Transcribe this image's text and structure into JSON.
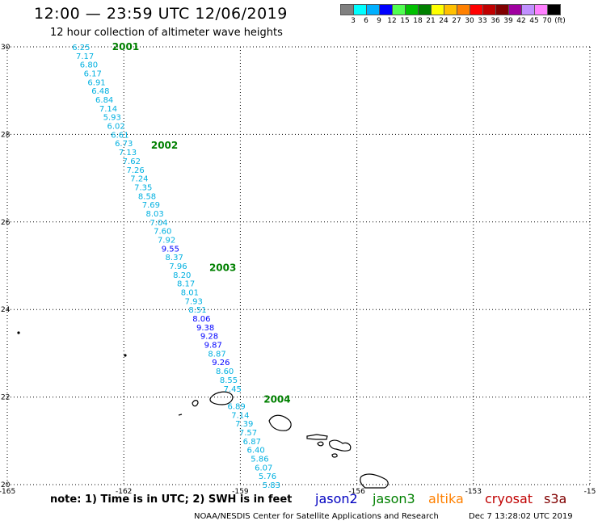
{
  "header": {
    "title": "12:00 — 23:59 UTC 12/06/2019",
    "subtitle": "12 hour collection of altimeter wave heights"
  },
  "scale": {
    "colors": [
      "#808080",
      "#00ffff",
      "#00b0ff",
      "#0000ff",
      "#50ff50",
      "#00c000",
      "#008000",
      "#ffff00",
      "#ffc000",
      "#ff8000",
      "#ff0000",
      "#c00000",
      "#800000",
      "#a000a0",
      "#c090ff",
      "#ff80ff",
      "#000000"
    ],
    "labels": [
      "3",
      "6",
      "9",
      "12",
      "15",
      "18",
      "21",
      "24",
      "27",
      "30",
      "33",
      "36",
      "39",
      "42",
      "45",
      "70",
      "(ft)"
    ]
  },
  "map": {
    "lon_ticks": [
      "-165",
      "-162",
      "-159",
      "-156",
      "-153",
      "-15"
    ],
    "lat_ticks": [
      "30",
      "28",
      "26",
      "24",
      "22",
      "20"
    ],
    "track": [
      {
        "lat": 30.0,
        "lon": -163.1,
        "v": "6.25"
      },
      {
        "lat": 29.8,
        "lon": -163.0,
        "v": "7.17"
      },
      {
        "lat": 29.6,
        "lon": -162.9,
        "v": "6.80"
      },
      {
        "lat": 29.4,
        "lon": -162.8,
        "v": "6.17"
      },
      {
        "lat": 29.2,
        "lon": -162.7,
        "v": "6.91"
      },
      {
        "lat": 29.0,
        "lon": -162.6,
        "v": "6.48"
      },
      {
        "lat": 28.8,
        "lon": -162.5,
        "v": "6.84"
      },
      {
        "lat": 28.6,
        "lon": -162.4,
        "v": "7.14"
      },
      {
        "lat": 28.4,
        "lon": -162.3,
        "v": "5.93"
      },
      {
        "lat": 28.2,
        "lon": -162.2,
        "v": "6.02"
      },
      {
        "lat": 28.0,
        "lon": -162.1,
        "v": "6.61"
      },
      {
        "lat": 27.8,
        "lon": -162.0,
        "v": "6.73"
      },
      {
        "lat": 27.6,
        "lon": -161.9,
        "v": "7.13"
      },
      {
        "lat": 27.4,
        "lon": -161.8,
        "v": "7.62"
      },
      {
        "lat": 27.2,
        "lon": -161.7,
        "v": "7.26"
      },
      {
        "lat": 27.0,
        "lon": -161.6,
        "v": "7.24"
      },
      {
        "lat": 26.8,
        "lon": -161.5,
        "v": "7.35"
      },
      {
        "lat": 26.6,
        "lon": -161.4,
        "v": "8.58"
      },
      {
        "lat": 26.4,
        "lon": -161.3,
        "v": "7.69"
      },
      {
        "lat": 26.2,
        "lon": -161.2,
        "v": "8.03"
      },
      {
        "lat": 26.0,
        "lon": -161.1,
        "v": "7.04"
      },
      {
        "lat": 25.8,
        "lon": -161.0,
        "v": "7.60"
      },
      {
        "lat": 25.6,
        "lon": -160.9,
        "v": "7.92"
      },
      {
        "lat": 25.4,
        "lon": -160.8,
        "v": "9.55",
        "c": "#0000ff"
      },
      {
        "lat": 25.2,
        "lon": -160.7,
        "v": "8.37"
      },
      {
        "lat": 25.0,
        "lon": -160.6,
        "v": "7.96"
      },
      {
        "lat": 24.8,
        "lon": -160.5,
        "v": "8.20"
      },
      {
        "lat": 24.6,
        "lon": -160.4,
        "v": "8.17"
      },
      {
        "lat": 24.4,
        "lon": -160.3,
        "v": "8.01"
      },
      {
        "lat": 24.2,
        "lon": -160.2,
        "v": "7.93"
      },
      {
        "lat": 24.0,
        "lon": -160.1,
        "v": "8.51"
      },
      {
        "lat": 23.8,
        "lon": -160.0,
        "v": "8.06",
        "c": "#0000ff"
      },
      {
        "lat": 23.6,
        "lon": -159.9,
        "v": "9.38",
        "c": "#0000ff"
      },
      {
        "lat": 23.4,
        "lon": -159.8,
        "v": "9.28",
        "c": "#0000ff"
      },
      {
        "lat": 23.2,
        "lon": -159.7,
        "v": "9.87",
        "c": "#0000ff"
      },
      {
        "lat": 23.0,
        "lon": -159.6,
        "v": "8.87"
      },
      {
        "lat": 22.8,
        "lon": -159.5,
        "v": "9.26",
        "c": "#0000ff"
      },
      {
        "lat": 22.6,
        "lon": -159.4,
        "v": "8.60"
      },
      {
        "lat": 22.4,
        "lon": -159.3,
        "v": "8.55"
      },
      {
        "lat": 22.2,
        "lon": -159.2,
        "v": "7.45"
      },
      {
        "lat": 21.8,
        "lon": -159.1,
        "v": "6.89"
      },
      {
        "lat": 21.6,
        "lon": -159.0,
        "v": "7.14"
      },
      {
        "lat": 21.4,
        "lon": -158.9,
        "v": "7.39"
      },
      {
        "lat": 21.2,
        "lon": -158.8,
        "v": "7.57"
      },
      {
        "lat": 21.0,
        "lon": -158.7,
        "v": "6.87"
      },
      {
        "lat": 20.8,
        "lon": -158.6,
        "v": "6.40"
      },
      {
        "lat": 20.6,
        "lon": -158.5,
        "v": "5.86"
      },
      {
        "lat": 20.4,
        "lon": -158.4,
        "v": "6.07"
      },
      {
        "lat": 20.2,
        "lon": -158.3,
        "v": "5.76"
      },
      {
        "lat": 20.0,
        "lon": -158.2,
        "v": "5.83"
      }
    ],
    "time_labels": [
      {
        "lat": 30.0,
        "lon": -162.3,
        "v": "2001"
      },
      {
        "lat": 27.75,
        "lon": -161.3,
        "v": "2002"
      },
      {
        "lat": 24.95,
        "lon": -159.8,
        "v": "2003"
      },
      {
        "lat": 21.95,
        "lon": -158.4,
        "v": "2004"
      }
    ],
    "time_color": "#008000",
    "track_color": "#00b0e0"
  },
  "footer": {
    "note": "note: 1) Time is in UTC; 2) SWH is in feet",
    "satellites": [
      {
        "name": "jason2",
        "color": "#0000c0"
      },
      {
        "name": "jason3",
        "color": "#008000"
      },
      {
        "name": "altika",
        "color": "#ff8000"
      },
      {
        "name": "cryosat",
        "color": "#c00000"
      },
      {
        "name": "s3a",
        "color": "#800000"
      }
    ],
    "credit": "NOAA/NESDIS Center for Satellite Applications and Research",
    "date": "Dec  7 13:28:02 UTC 2019"
  }
}
